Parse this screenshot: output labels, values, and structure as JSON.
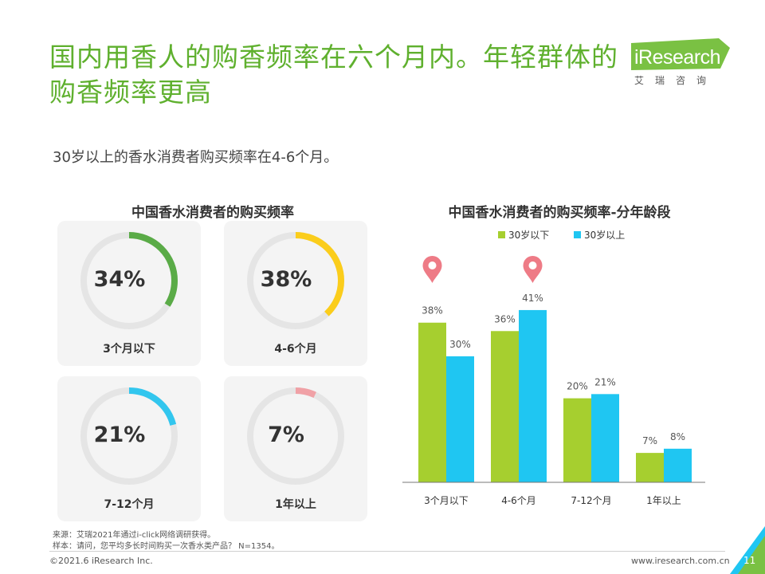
{
  "header": {
    "title": "国内用香人的购香频率在六个月内。年轻群体的购香频率更高",
    "subtitle": "30岁以上的香水消费者购买频率在4-6个月。"
  },
  "logo": {
    "brand": "iResearch",
    "cn": "艾瑞咨询"
  },
  "colors": {
    "title": "#5fb02e",
    "green": "#a6cf2f",
    "blue": "#1fc6f2",
    "ring_track": "#e5e5e5",
    "pin": "#ee7b86"
  },
  "chart_data": [
    {
      "type": "pie",
      "title": "中国香水消费者的购买频率",
      "categories": [
        "3个月以下",
        "4-6个月",
        "7-12个月",
        "1年以上"
      ],
      "values": [
        34,
        38,
        21,
        7
      ],
      "labels": [
        "34%",
        "38%",
        "21%",
        "7%"
      ],
      "colors": [
        "#5aab47",
        "#fbcd1b",
        "#32c6ee",
        "#f0a1a6"
      ]
    },
    {
      "type": "bar",
      "title": "中国香水消费者的购买频率-分年龄段",
      "categories": [
        "3个月以下",
        "4-6个月",
        "7-12个月",
        "1年以上"
      ],
      "series": [
        {
          "name": "30岁以下",
          "values": [
            38,
            36,
            20,
            7
          ],
          "labels": [
            "38%",
            "36%",
            "20%",
            "7%"
          ]
        },
        {
          "name": "30岁以上",
          "values": [
            30,
            41,
            21,
            8
          ],
          "labels": [
            "30%",
            "41%",
            "21%",
            "8%"
          ]
        }
      ],
      "ylim": [
        0,
        50
      ],
      "legend": "top-center",
      "highlight_categories": [
        "3个月以下",
        "4-6个月"
      ]
    }
  ],
  "footnotes": {
    "source": "来源：艾瑞2021年通过i-click网络调研获得。",
    "sample": "样本：请问，您平均多长时间购买一次香水类产品？ N=1354。"
  },
  "footer": {
    "copyright": "©2021.6 iResearch Inc.",
    "website": "www.iresearch.com.cn",
    "page": "11"
  }
}
